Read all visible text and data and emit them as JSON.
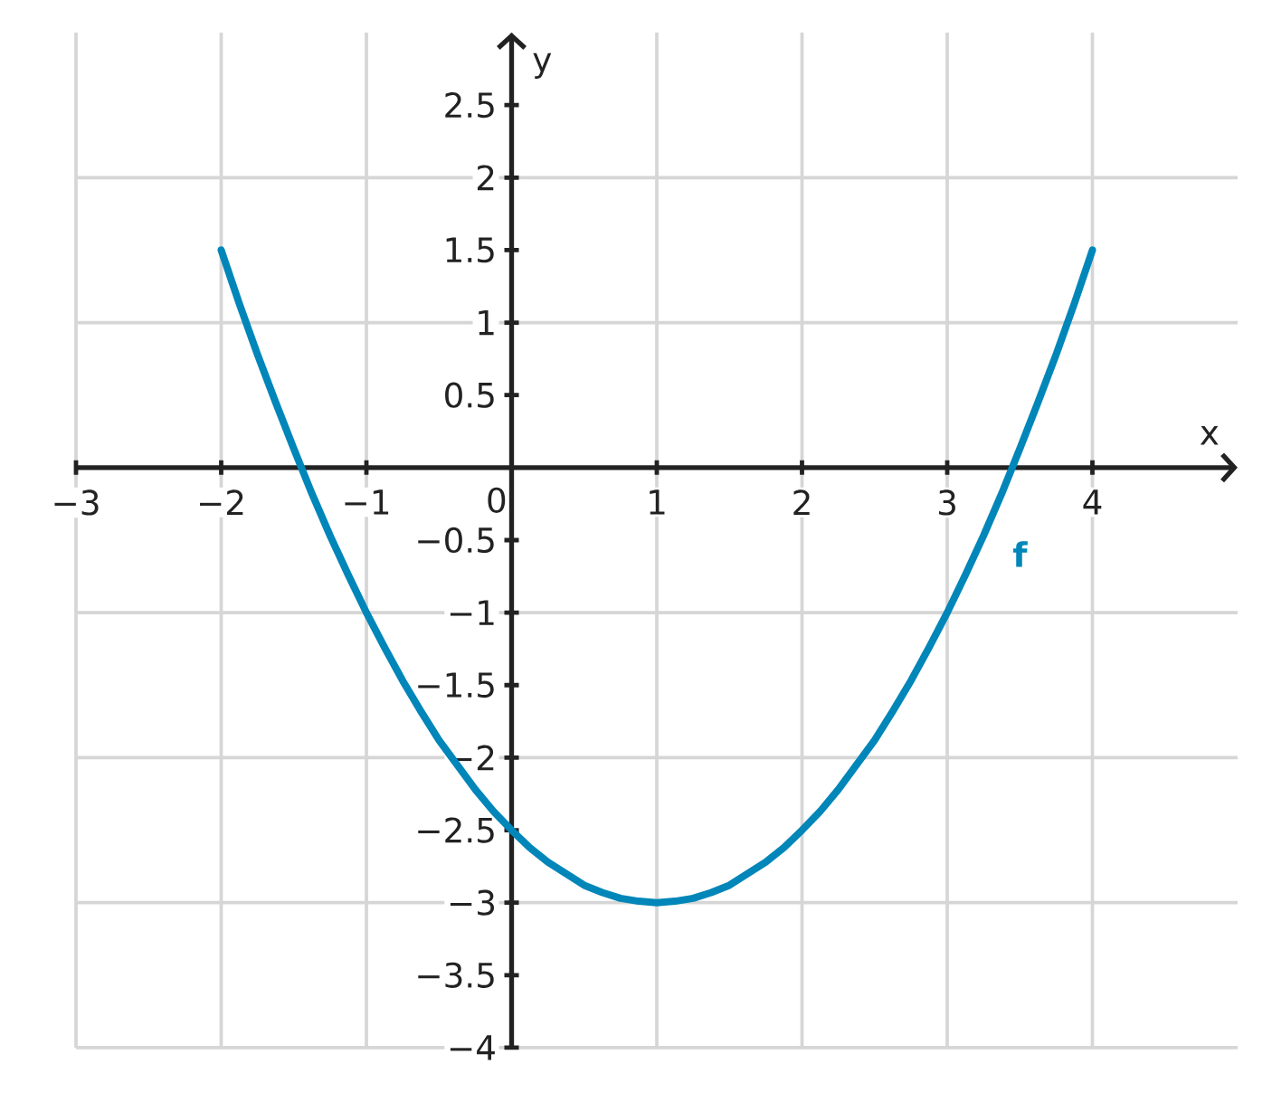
{
  "chart_data": {
    "type": "line",
    "xlabel": "x",
    "ylabel": "y",
    "xlim": [
      -3,
      5
    ],
    "ylim": [
      -4,
      3
    ],
    "xticks": [
      {
        "value": -3,
        "label": "−3"
      },
      {
        "value": -2,
        "label": "−2"
      },
      {
        "value": -1,
        "label": "−1"
      },
      0,
      1,
      2,
      3,
      4
    ],
    "yticks": [
      {
        "value": -4,
        "label": "−4"
      },
      {
        "value": -3.5,
        "label": "−3.5"
      },
      {
        "value": -3,
        "label": "−3"
      },
      {
        "value": -2.5,
        "label": "−2.5"
      },
      {
        "value": -2,
        "label": "−2"
      },
      {
        "value": -1.5,
        "label": "−1.5"
      },
      {
        "value": -1,
        "label": "−1"
      },
      {
        "value": -0.5,
        "label": "−0.5"
      },
      0.5,
      1,
      1.5,
      2,
      2.5
    ],
    "grid": true,
    "x": [
      -2,
      -1.875,
      -1.75,
      -1.625,
      -1.5,
      -1.375,
      -1.25,
      -1.125,
      -1,
      -0.875,
      -0.75,
      -0.625,
      -0.5,
      -0.375,
      -0.25,
      -0.125,
      0,
      0.125,
      0.25,
      0.375,
      0.5,
      0.625,
      0.75,
      0.875,
      1,
      1.125,
      1.25,
      1.375,
      1.5,
      1.625,
      1.75,
      1.875,
      2,
      2.125,
      2.25,
      2.375,
      2.5,
      2.625,
      2.75,
      2.875,
      3,
      3.125,
      3.25,
      3.375,
      3.5,
      3.625,
      3.75,
      3.875,
      4
    ],
    "series": [
      {
        "name": "f",
        "color": "#0086b8",
        "values": [
          1.5,
          1.13,
          0.78,
          0.45,
          0.13,
          -0.18,
          -0.47,
          -0.74,
          -1,
          -1.24,
          -1.47,
          -1.68,
          -1.88,
          -2.05,
          -2.22,
          -2.37,
          -2.5,
          -2.62,
          -2.72,
          -2.8,
          -2.88,
          -2.93,
          -2.97,
          -2.99,
          -3,
          -2.99,
          -2.97,
          -2.93,
          -2.88,
          -2.8,
          -2.72,
          -2.62,
          -2.5,
          -2.37,
          -2.22,
          -2.05,
          -1.88,
          -1.68,
          -1.47,
          -1.24,
          -1,
          -0.74,
          -0.47,
          -0.18,
          0.13,
          0.45,
          0.78,
          1.13,
          1.5
        ]
      }
    ]
  }
}
